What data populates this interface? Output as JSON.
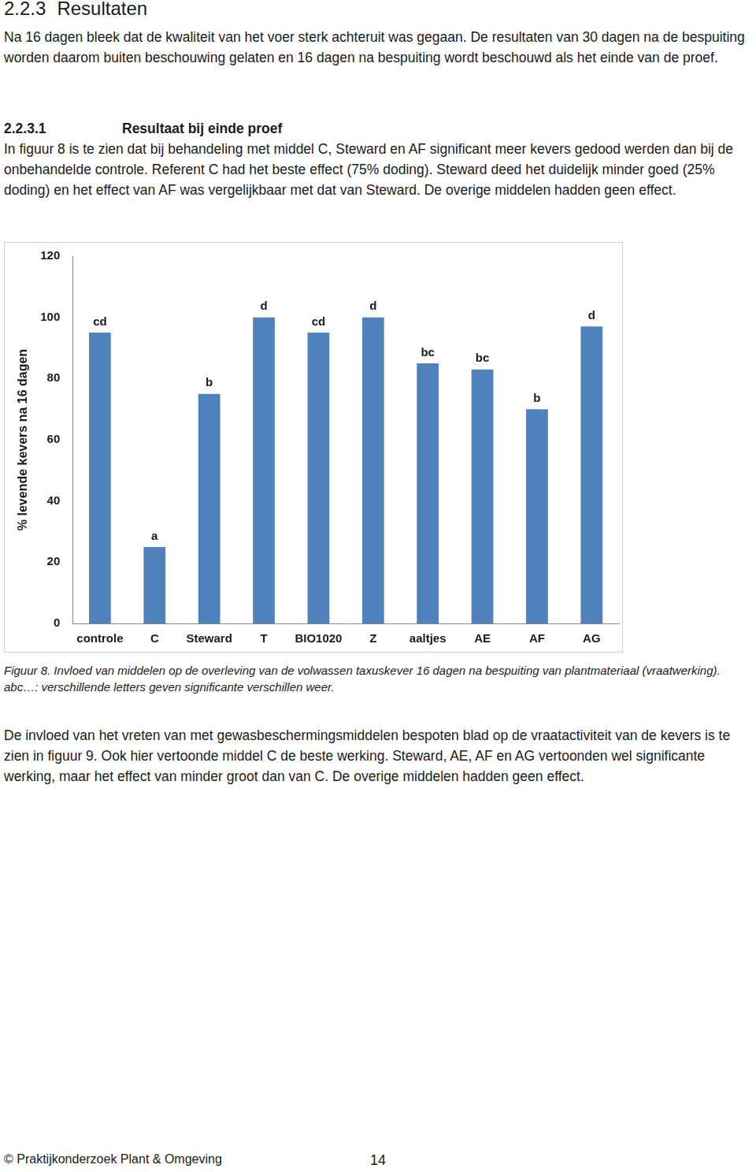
{
  "section": {
    "number": "2.2.3",
    "title": "Resultaten"
  },
  "intro": "Na 16 dagen bleek dat de kwaliteit van het voer sterk achteruit was gegaan. De resultaten van 30 dagen na de bespuiting worden daarom buiten beschouwing gelaten en 16 dagen na bespuiting wordt beschouwd als het einde van de proef.",
  "subsection": {
    "number": "2.2.3.1",
    "title": "Resultaat bij einde proef"
  },
  "paragraph1": "In figuur 8 is te zien dat bij behandeling met middel C, Steward en AF significant meer kevers gedood werden dan bij de onbehandelde controle. Referent C had het beste effect (75% doding). Steward deed het duidelijk minder goed (25% doding) en het effect van AF was vergelijkbaar met dat van Steward. De overige middelen hadden geen effect.",
  "chart_data": {
    "type": "bar",
    "y_label": "% levende kevers na 16 dagen",
    "categories": [
      "controle",
      "C",
      "Steward",
      "T",
      "BIO1020",
      "Z",
      "aaltjes",
      "AE",
      "AF",
      "AG"
    ],
    "values": [
      95,
      25,
      75,
      100,
      95,
      100,
      85,
      83,
      70,
      97
    ],
    "significance_letters": [
      "cd",
      "a",
      "b",
      "d",
      "cd",
      "d",
      "bc",
      "bc",
      "b",
      "d"
    ],
    "color": "#4f81bd",
    "ylim": [
      0,
      120
    ],
    "yticks": [
      0,
      20,
      40,
      60,
      80,
      100,
      120
    ],
    "grid": false
  },
  "caption": "Figuur 8. Invloed van middelen op de overleving van de volwassen taxuskever 16 dagen na bespuiting van plantmateriaal (vraatwerking). abc…: verschillende letters geven significante verschillen weer.",
  "paragraph2": "De invloed van het vreten van met gewasbeschermingsmiddelen bespoten blad op de vraatactiviteit van de kevers is te zien in figuur 9. Ook hier vertoonde middel C de beste werking. Steward, AE, AF en AG vertoonden wel significante werking, maar het effect van minder groot dan van C. De overige middelen hadden geen effect.",
  "footer": {
    "left": "© Praktijkonderzoek Plant & Omgeving",
    "page": "14"
  }
}
